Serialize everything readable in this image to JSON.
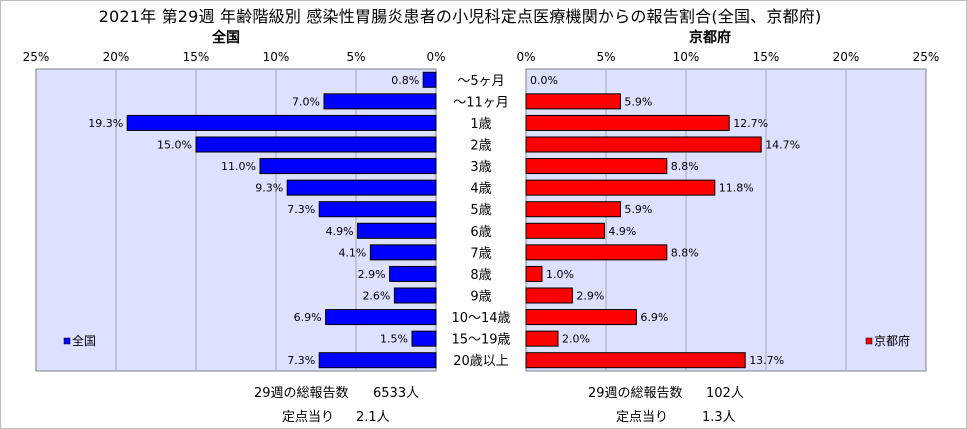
{
  "title": "2021年 第29週 年齢階級別 感染性胃腸炎患者の小児科定点医療機関からの報告割合(全国、京都府)",
  "colors": {
    "national": "#0000ff",
    "kyoto": "#ff0000",
    "plot_bg": "#dde0ff",
    "grid": "#a8a8a8"
  },
  "chart_data": [
    {
      "type": "bar",
      "orientation": "horizontal",
      "title": "全国",
      "legend": {
        "label": "全国",
        "placement": "bottom-left"
      },
      "xlim": [
        0,
        25
      ],
      "x_direction": "reversed",
      "ticks": [
        "25%",
        "20%",
        "15%",
        "10%",
        "5%",
        "0%"
      ],
      "categories": [
        "～5ヶ月",
        "～11ヶ月",
        "1歳",
        "2歳",
        "3歳",
        "4歳",
        "5歳",
        "6歳",
        "7歳",
        "8歳",
        "9歳",
        "10～14歳",
        "15～19歳",
        "20歳以上"
      ],
      "values": [
        0.8,
        7.0,
        19.3,
        15.0,
        11.0,
        9.3,
        7.3,
        4.9,
        4.1,
        2.9,
        2.6,
        6.9,
        1.5,
        7.3
      ],
      "labels": [
        "0.8%",
        "7.0%",
        "19.3%",
        "15.0%",
        "11.0%",
        "9.3%",
        "7.3%",
        "4.9%",
        "4.1%",
        "2.9%",
        "2.6%",
        "6.9%",
        "1.5%",
        "7.3%"
      ]
    },
    {
      "type": "bar",
      "orientation": "horizontal",
      "title": "京都府",
      "legend": {
        "label": "京都府",
        "placement": "bottom-right"
      },
      "xlim": [
        0,
        25
      ],
      "ticks": [
        "0%",
        "5%",
        "10%",
        "15%",
        "20%",
        "25%"
      ],
      "categories": [
        "～5ヶ月",
        "～11ヶ月",
        "1歳",
        "2歳",
        "3歳",
        "4歳",
        "5歳",
        "6歳",
        "7歳",
        "8歳",
        "9歳",
        "10～14歳",
        "15～19歳",
        "20歳以上"
      ],
      "values": [
        0.0,
        5.9,
        12.7,
        14.7,
        8.8,
        11.8,
        5.9,
        4.9,
        8.8,
        1.0,
        2.9,
        6.9,
        2.0,
        13.7
      ],
      "labels": [
        "0.0%",
        "5.9%",
        "12.7%",
        "14.7%",
        "8.8%",
        "11.8%",
        "5.9%",
        "4.9%",
        "8.8%",
        "1.0%",
        "2.9%",
        "6.9%",
        "2.0%",
        "13.7%"
      ]
    }
  ],
  "footer": {
    "national_total_label": "29週の総報告数",
    "national_total_value": "6533人",
    "national_per_site_label": "定点当り",
    "national_per_site_value": "2.1人",
    "kyoto_total_label": "29週の総報告数",
    "kyoto_total_value": "102人",
    "kyoto_per_site_label": "定点当り",
    "kyoto_per_site_value": "1.3人"
  }
}
